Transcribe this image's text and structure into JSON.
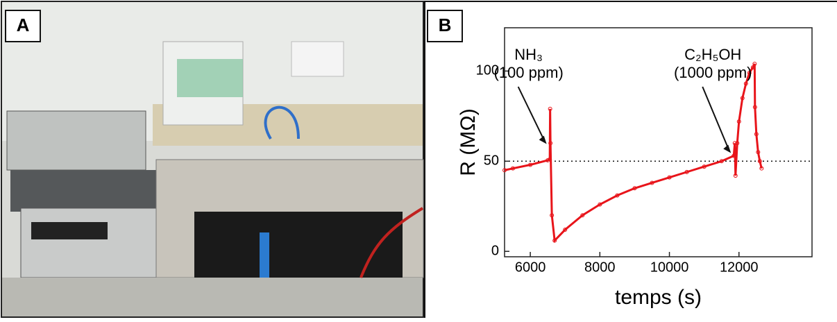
{
  "panels": [
    "A",
    "B"
  ],
  "chart_data": {
    "type": "line",
    "x_label": "temps (s)",
    "y_label": "R (MΩ)",
    "xlim": [
      5260,
      14100
    ],
    "ylim": [
      -3,
      124
    ],
    "xticks": [
      6000,
      8000,
      10000,
      12000
    ],
    "yticks": [
      0,
      50,
      100
    ],
    "reference_line": 50,
    "annotations": [
      {
        "lines": [
          "NH₃",
          "(100 ppm)"
        ],
        "x": 6550,
        "y": 58
      },
      {
        "lines": [
          "C₂H₅OH",
          "(1000 ppm)"
        ],
        "x": 11850,
        "y": 53
      }
    ],
    "x": [
      5260,
      5500,
      6000,
      6500,
      6560,
      6570,
      6580,
      6620,
      6700,
      7000,
      7500,
      8000,
      8500,
      9000,
      9500,
      10000,
      10500,
      11000,
      11500,
      11850,
      11880,
      11900,
      11950,
      12000,
      12100,
      12200,
      12300,
      12400,
      12450,
      12460,
      12500,
      12550,
      12600,
      12650
    ],
    "series": [
      {
        "color": "#e8141a",
        "values": [
          45,
          46,
          48,
          50.5,
          51,
          79,
          60,
          20,
          6,
          12,
          20,
          26,
          31,
          35,
          38,
          41,
          44,
          47,
          50,
          53,
          60,
          42,
          60,
          72,
          85,
          93,
          99,
          102,
          104,
          80,
          65,
          55,
          50,
          46
        ]
      }
    ]
  }
}
